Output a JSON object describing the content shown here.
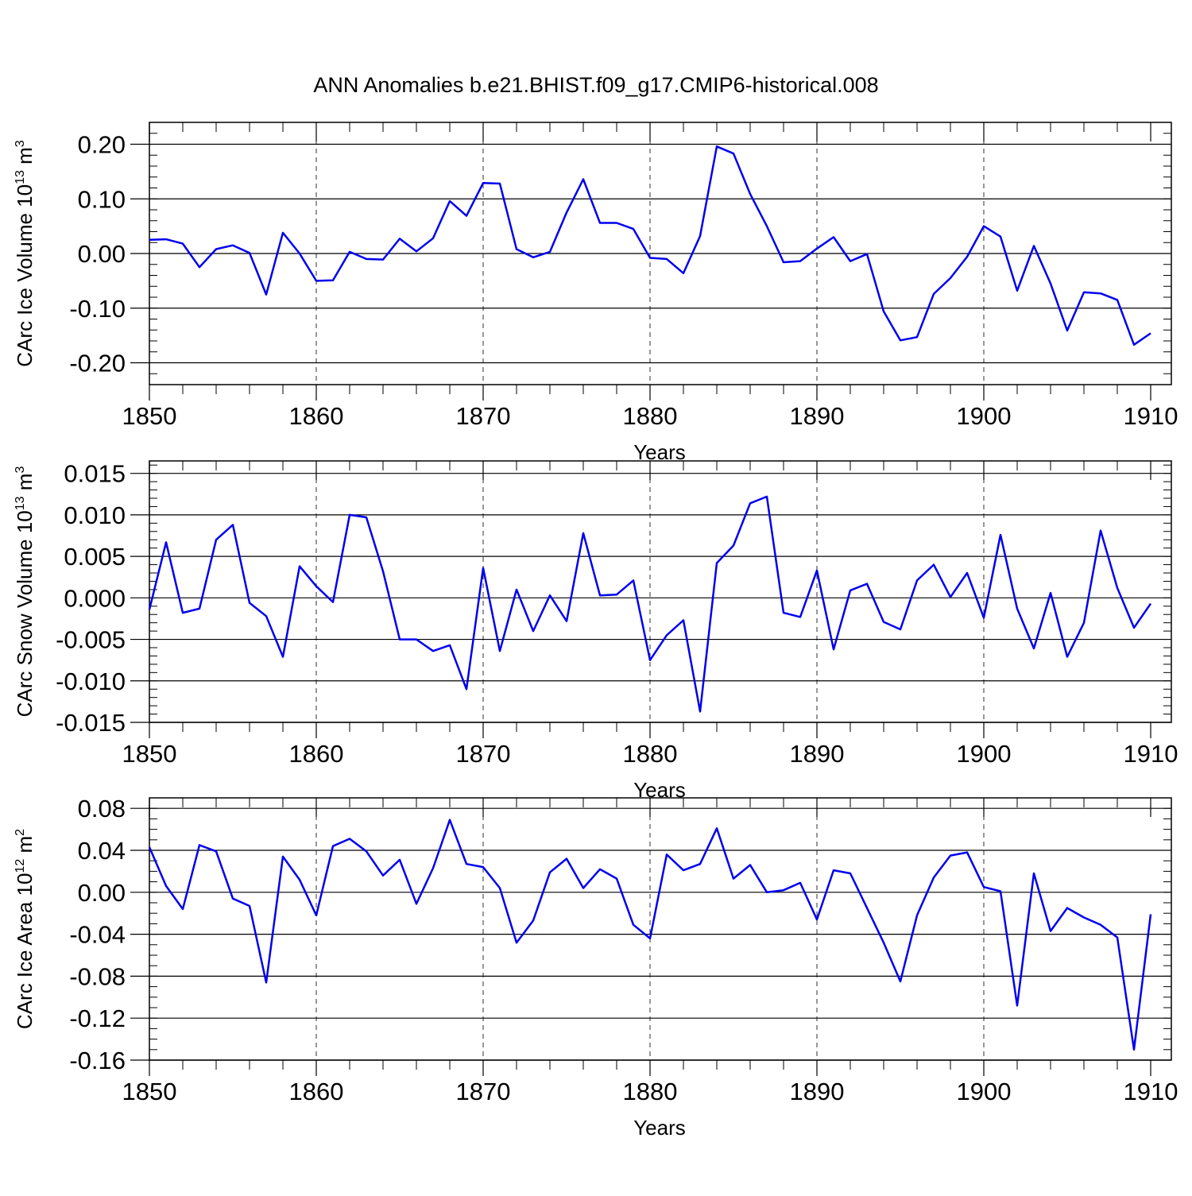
{
  "title": "ANN Anomalies b.e21.BHIST.f09_g17.CMIP6-historical.008",
  "colors": {
    "series": "#0000ee",
    "axis": "#000000"
  },
  "chart_data": [
    {
      "type": "line",
      "xlabel": "Years",
      "ylabel_text": "CArc Ice Volume 10",
      "ylabel_exp": "13",
      "ylabel_unit": " m",
      "ylabel_unit_exp": "3",
      "xlim": [
        1850,
        1910
      ],
      "ylim": [
        -0.24,
        0.24
      ],
      "yticks": [
        -0.2,
        -0.1,
        0.0,
        0.1,
        0.2
      ],
      "ytick_labels": [
        "-0.20",
        "-0.10",
        "0.00",
        "0.10",
        "0.20"
      ],
      "yminor_step": 0.02,
      "xticks": [
        1850,
        1860,
        1870,
        1880,
        1890,
        1900,
        1910
      ],
      "xtick_labels": [
        "1850",
        "1860",
        "1870",
        "1880",
        "1890",
        "1900",
        "1910"
      ],
      "grid_x": [
        1860,
        1870,
        1880,
        1890,
        1900
      ],
      "grid": "dashed vertical",
      "x": [
        1850,
        1851,
        1852,
        1853,
        1854,
        1855,
        1856,
        1857,
        1858,
        1859,
        1860,
        1861,
        1862,
        1863,
        1864,
        1865,
        1866,
        1867,
        1868,
        1869,
        1870,
        1871,
        1872,
        1873,
        1874,
        1875,
        1876,
        1877,
        1878,
        1879,
        1880,
        1881,
        1882,
        1883,
        1884,
        1885,
        1886,
        1887,
        1888,
        1889,
        1890,
        1891,
        1892,
        1893,
        1894,
        1895,
        1896,
        1897,
        1898,
        1899,
        1900,
        1901,
        1902,
        1903,
        1904,
        1905,
        1906,
        1907,
        1908,
        1909,
        1910
      ],
      "values": [
        0.025,
        0.026,
        0.018,
        -0.025,
        0.008,
        0.015,
        0.001,
        -0.075,
        0.038,
        0.0,
        -0.05,
        -0.049,
        0.003,
        -0.01,
        -0.011,
        0.027,
        0.004,
        0.028,
        0.096,
        0.069,
        0.129,
        0.128,
        0.008,
        -0.007,
        0.003,
        0.075,
        0.136,
        0.056,
        0.056,
        0.045,
        -0.008,
        -0.01,
        -0.036,
        0.032,
        0.196,
        0.183,
        0.109,
        0.05,
        -0.016,
        -0.014,
        0.009,
        0.03,
        -0.014,
        -0.001,
        -0.106,
        -0.159,
        -0.153,
        -0.074,
        -0.045,
        -0.006,
        0.05,
        0.031,
        -0.068,
        0.014,
        -0.055,
        -0.141,
        -0.071,
        -0.073,
        -0.085,
        -0.167,
        -0.146
      ]
    },
    {
      "type": "line",
      "xlabel": "Years",
      "ylabel_text": "CArc Snow Volume 10",
      "ylabel_exp": "13",
      "ylabel_unit": " m",
      "ylabel_unit_exp": "3",
      "xlim": [
        1850,
        1910
      ],
      "ylim": [
        -0.015,
        0.0165
      ],
      "yticks": [
        -0.015,
        -0.01,
        -0.005,
        0.0,
        0.005,
        0.01,
        0.015
      ],
      "ytick_labels": [
        "-0.015",
        "-0.010",
        "-0.005",
        "0.000",
        "0.005",
        "0.010",
        "0.015"
      ],
      "yminor_step": 0.001,
      "xticks": [
        1850,
        1860,
        1870,
        1880,
        1890,
        1900,
        1910
      ],
      "xtick_labels": [
        "1850",
        "1860",
        "1870",
        "1880",
        "1890",
        "1900",
        "1910"
      ],
      "grid_x": [
        1860,
        1870,
        1880,
        1890,
        1900
      ],
      "grid": "dashed vertical",
      "x": [
        1850,
        1851,
        1852,
        1853,
        1854,
        1855,
        1856,
        1857,
        1858,
        1859,
        1860,
        1861,
        1862,
        1863,
        1864,
        1865,
        1866,
        1867,
        1868,
        1869,
        1870,
        1871,
        1872,
        1873,
        1874,
        1875,
        1876,
        1877,
        1878,
        1879,
        1880,
        1881,
        1882,
        1883,
        1884,
        1885,
        1886,
        1887,
        1888,
        1889,
        1890,
        1891,
        1892,
        1893,
        1894,
        1895,
        1896,
        1897,
        1898,
        1899,
        1900,
        1901,
        1902,
        1903,
        1904,
        1905,
        1906,
        1907,
        1908,
        1909,
        1910
      ],
      "values": [
        -0.0014,
        0.0067,
        -0.0018,
        -0.0013,
        0.007,
        0.0088,
        -0.0006,
        -0.0022,
        -0.0071,
        0.0038,
        0.0014,
        -0.0005,
        0.01,
        0.0097,
        0.0032,
        -0.005,
        -0.005,
        -0.0064,
        -0.0057,
        -0.011,
        0.0036,
        -0.0064,
        0.001,
        -0.004,
        0.0003,
        -0.0028,
        0.0078,
        0.0003,
        0.0004,
        0.0021,
        -0.0075,
        -0.0045,
        -0.0027,
        -0.0137,
        0.0042,
        0.0063,
        0.0114,
        0.0122,
        -0.0018,
        -0.0023,
        0.0033,
        -0.0062,
        0.0009,
        0.0017,
        -0.0029,
        -0.0038,
        0.0021,
        0.004,
        0.0001,
        0.003,
        -0.0024,
        0.0076,
        -0.0013,
        -0.0061,
        0.0006,
        -0.0071,
        -0.003,
        0.0081,
        0.0012,
        -0.0036,
        -0.0007
      ]
    },
    {
      "type": "line",
      "xlabel": "Years",
      "ylabel_text": "CArc Ice Area 10",
      "ylabel_exp": "12",
      "ylabel_unit": " m",
      "ylabel_unit_exp": "2",
      "xlim": [
        1850,
        1910
      ],
      "ylim": [
        -0.16,
        0.09
      ],
      "yticks": [
        -0.16,
        -0.12,
        -0.08,
        -0.04,
        0.0,
        0.04,
        0.08
      ],
      "ytick_labels": [
        "-0.16",
        "-0.12",
        "-0.08",
        "-0.04",
        "0.00",
        "0.04",
        "0.08"
      ],
      "yminor_step": 0.01,
      "xticks": [
        1850,
        1860,
        1870,
        1880,
        1890,
        1900,
        1910
      ],
      "xtick_labels": [
        "1850",
        "1860",
        "1870",
        "1880",
        "1890",
        "1900",
        "1910"
      ],
      "grid_x": [
        1860,
        1870,
        1880,
        1890,
        1900
      ],
      "grid": "dashed vertical",
      "x": [
        1850,
        1851,
        1852,
        1853,
        1854,
        1855,
        1856,
        1857,
        1858,
        1859,
        1860,
        1861,
        1862,
        1863,
        1864,
        1865,
        1866,
        1867,
        1868,
        1869,
        1870,
        1871,
        1872,
        1873,
        1874,
        1875,
        1876,
        1877,
        1878,
        1879,
        1880,
        1881,
        1882,
        1883,
        1884,
        1885,
        1886,
        1887,
        1888,
        1889,
        1890,
        1891,
        1892,
        1893,
        1894,
        1895,
        1896,
        1897,
        1898,
        1899,
        1900,
        1901,
        1902,
        1903,
        1904,
        1905,
        1906,
        1907,
        1908,
        1909,
        1910
      ],
      "values": [
        0.043,
        0.006,
        -0.016,
        0.045,
        0.039,
        -0.006,
        -0.013,
        -0.086,
        0.034,
        0.012,
        -0.022,
        0.044,
        0.051,
        0.039,
        0.016,
        0.031,
        -0.011,
        0.023,
        0.069,
        0.027,
        0.024,
        0.004,
        -0.048,
        -0.027,
        0.019,
        0.032,
        0.004,
        0.022,
        0.013,
        -0.031,
        -0.044,
        0.036,
        0.021,
        0.027,
        0.061,
        0.013,
        0.026,
        0.0,
        0.002,
        0.009,
        -0.026,
        0.021,
        0.018,
        -0.015,
        -0.048,
        -0.085,
        -0.022,
        0.014,
        0.035,
        0.038,
        0.005,
        0.001,
        -0.108,
        0.018,
        -0.037,
        -0.015,
        -0.024,
        -0.031,
        -0.043,
        -0.15,
        -0.021
      ]
    }
  ]
}
